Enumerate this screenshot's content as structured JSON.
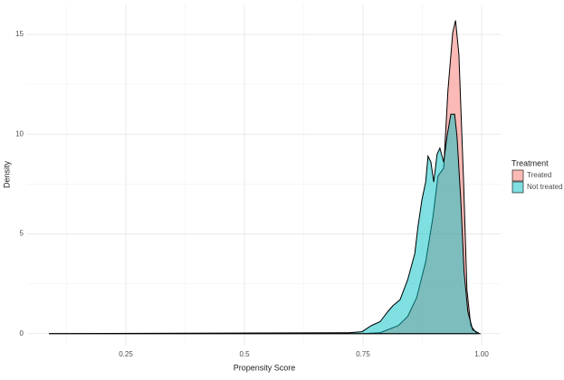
{
  "chart_data": {
    "type": "density",
    "x_label": "Propensity Score",
    "y_label": "Density",
    "legend_title": "Treatment",
    "legend": "right",
    "grid": true,
    "xlim": [
      0.042,
      1.04
    ],
    "ylim": [
      -0.6,
      16.5
    ],
    "xticks": [
      0.25,
      0.5,
      0.75,
      {
        "value": 1,
        "label": "1.00"
      }
    ],
    "xminor": [
      0.125,
      0.375,
      0.625,
      0.875
    ],
    "yticks": [
      0,
      5,
      10,
      15
    ],
    "yminor": [
      2.5,
      7.5,
      12.5
    ],
    "series": [
      {
        "name": "Treated",
        "color": "#F8766D",
        "x": [
          0.088,
          0.75,
          0.786,
          0.824,
          0.844,
          0.863,
          0.882,
          0.897,
          0.908,
          0.92,
          0.929,
          0.939,
          0.945,
          0.952,
          0.962,
          0.969,
          0.977,
          0.99
        ],
        "values": [
          0,
          0,
          0.05,
          0.4,
          0.86,
          1.8,
          3.6,
          5.8,
          7.9,
          8.3,
          12.2,
          15.1,
          15.7,
          14.0,
          7.6,
          2.2,
          0.4,
          0
        ]
      },
      {
        "name": "Not treated",
        "color": "#00BFC4",
        "x": [
          0.088,
          0.72,
          0.748,
          0.767,
          0.786,
          0.802,
          0.813,
          0.828,
          0.844,
          0.859,
          0.866,
          0.874,
          0.882,
          0.887,
          0.893,
          0.899,
          0.906,
          0.912,
          0.92,
          0.927,
          0.935,
          0.943,
          0.948,
          0.956,
          0.963,
          0.971,
          0.981,
          0.996
        ],
        "values": [
          0,
          0.05,
          0.1,
          0.4,
          0.6,
          1.1,
          1.4,
          1.7,
          2.7,
          4.0,
          5.4,
          6.7,
          7.6,
          8.9,
          8.6,
          7.6,
          9.0,
          9.3,
          8.6,
          9.9,
          11.0,
          11.0,
          9.9,
          6.7,
          3.1,
          1.1,
          0.2,
          0
        ]
      }
    ]
  }
}
